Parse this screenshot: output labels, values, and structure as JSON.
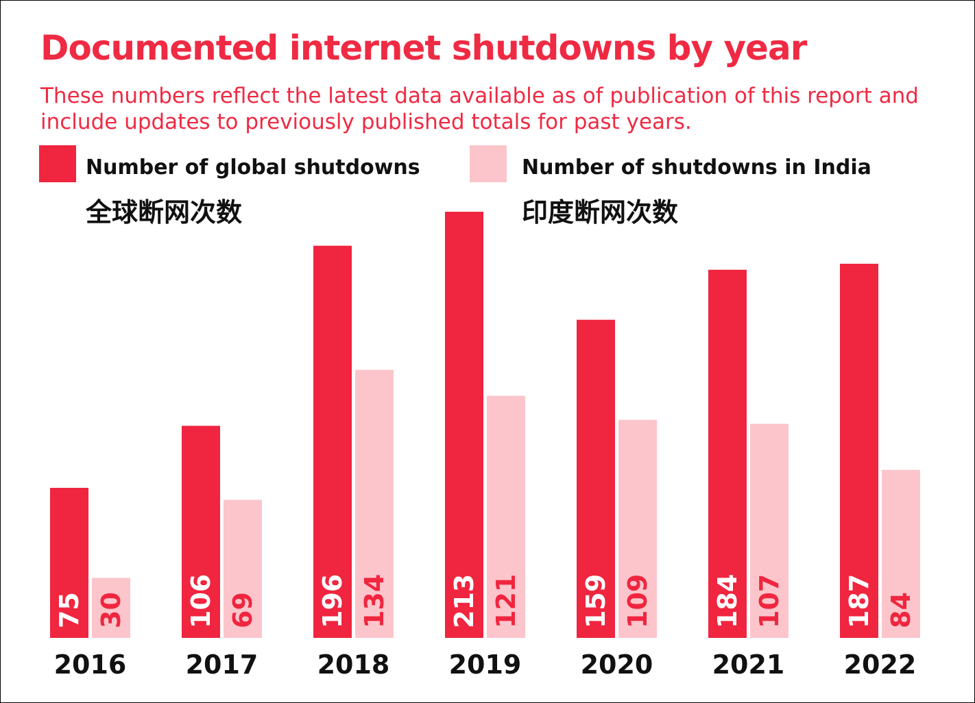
{
  "chart_data": {
    "type": "bar",
    "title": "Documented internet shutdowns by year",
    "subtitle": "These numbers reflect the latest data available as of publication of this report and include updates to previously published totals for past years.",
    "categories": [
      "2016",
      "2017",
      "2018",
      "2019",
      "2020",
      "2021",
      "2022"
    ],
    "series": [
      {
        "name": "Number of global shutdowns",
        "name_zh": "全球断网次数",
        "color": "#f0253f",
        "values": [
          75,
          106,
          196,
          213,
          159,
          184,
          187
        ]
      },
      {
        "name": "Number of shutdowns in India",
        "name_zh": "印度断网次数",
        "color": "#fcc5cb",
        "values": [
          30,
          69,
          134,
          121,
          109,
          107,
          84
        ]
      }
    ],
    "ylim": [
      0,
      213
    ],
    "xlabel": "",
    "ylabel": "",
    "grid": false,
    "legend_position": "top"
  }
}
